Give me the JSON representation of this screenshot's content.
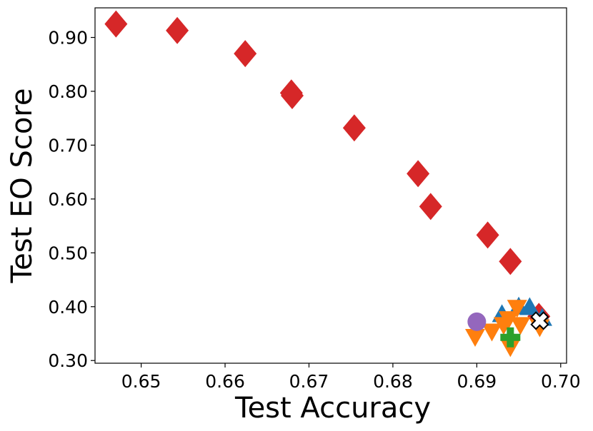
{
  "chart_data": {
    "type": "scatter",
    "title": "",
    "xlabel": "Test Accuracy",
    "ylabel": "Test EO Score",
    "xlim": [
      0.6445,
      0.7007
    ],
    "ylim": [
      0.295,
      0.955
    ],
    "xticks": [
      0.65,
      0.66,
      0.67,
      0.68,
      0.69,
      0.7
    ],
    "xtick_labels": [
      "0.65",
      "0.66",
      "0.67",
      "0.68",
      "0.69",
      "0.70"
    ],
    "yticks": [
      0.3,
      0.4,
      0.5,
      0.6,
      0.7,
      0.8,
      0.9
    ],
    "ytick_labels": [
      "0.30",
      "0.40",
      "0.50",
      "0.60",
      "0.70",
      "0.80",
      "0.90"
    ],
    "grid": false,
    "series": [
      {
        "marker": "diamond",
        "color": "#d62728",
        "points": [
          [
            0.647,
            0.925
          ],
          [
            0.6543,
            0.913
          ],
          [
            0.6624,
            0.87
          ],
          [
            0.6679,
            0.797
          ],
          [
            0.668,
            0.792
          ],
          [
            0.6754,
            0.732
          ],
          [
            0.683,
            0.647
          ],
          [
            0.6845,
            0.586
          ],
          [
            0.6913,
            0.533
          ],
          [
            0.694,
            0.484
          ],
          [
            0.6974,
            0.382
          ]
        ]
      },
      {
        "marker": "triangle-up",
        "color": "#1f77b4",
        "points": [
          [
            0.693,
            0.386
          ],
          [
            0.695,
            0.4
          ],
          [
            0.6963,
            0.399
          ],
          [
            0.6978,
            0.379
          ]
        ]
      },
      {
        "marker": "triangle-down",
        "color": "#ff7f0e",
        "points": [
          [
            0.6898,
            0.344
          ],
          [
            0.6918,
            0.354
          ],
          [
            0.6932,
            0.366
          ],
          [
            0.6938,
            0.377
          ],
          [
            0.694,
            0.325
          ],
          [
            0.6948,
            0.398
          ],
          [
            0.6952,
            0.366
          ],
          [
            0.6975,
            0.362
          ]
        ]
      },
      {
        "marker": "plus",
        "color": "#2ca02c",
        "points": [
          [
            0.694,
            0.343
          ]
        ]
      },
      {
        "marker": "circle",
        "color": "#9467bd",
        "points": [
          [
            0.69,
            0.372
          ]
        ]
      },
      {
        "marker": "x",
        "color": "#ffffff",
        "edgecolor": "#000000",
        "points": [
          [
            0.6975,
            0.374
          ]
        ]
      }
    ]
  }
}
